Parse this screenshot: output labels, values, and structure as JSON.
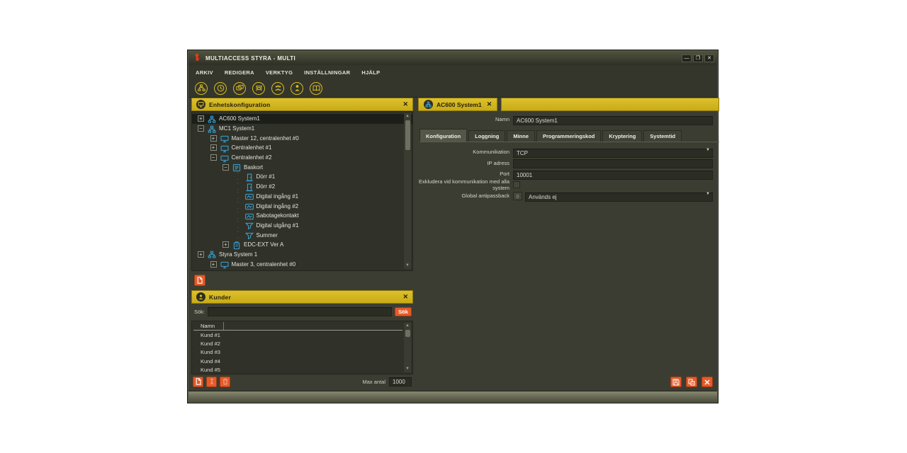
{
  "colors": {
    "accent_yellow": "#d3b622",
    "accent_orange": "#e65a28",
    "icon_cyan": "#39a5d9",
    "icon_yellow": "#d8bc20"
  },
  "glyphs": {
    "close": "✕",
    "minimize": "—",
    "dropdown": "▼",
    "scroll_up": "▲",
    "scroll_down": "▼",
    "expand": "+",
    "collapse": "−",
    "leaf_dash": "- -"
  },
  "window": {
    "title": "MULTIACCESS STYRA - MULTI"
  },
  "menu": {
    "items": [
      "ARKIV",
      "REDIGERA",
      "VERKTYG",
      "INSTÄLLNINGAR",
      "HJÄLP"
    ]
  },
  "toolbar": {
    "icons": [
      "device-tree",
      "time",
      "cards",
      "terminal",
      "group",
      "person",
      "log-book"
    ]
  },
  "device_panel": {
    "title": "Enhetskonfiguration",
    "tree": [
      {
        "label": "AC600 System1",
        "level": 0,
        "state": "collapsed",
        "icon": "system",
        "selected": true
      },
      {
        "label": "MC1 System1",
        "level": 0,
        "state": "expanded",
        "icon": "system",
        "selected": false
      },
      {
        "label": "Master 12, centralenhet #0",
        "level": 1,
        "state": "collapsed",
        "icon": "unit",
        "selected": false
      },
      {
        "label": "Centralenhet #1",
        "level": 1,
        "state": "collapsed",
        "icon": "unit",
        "selected": false
      },
      {
        "label": "Centralenhet #2",
        "level": 1,
        "state": "expanded",
        "icon": "unit",
        "selected": false
      },
      {
        "label": "Baskort",
        "level": 2,
        "state": "expanded",
        "icon": "board",
        "selected": false
      },
      {
        "label": "Dörr #1",
        "level": 3,
        "state": "leaf",
        "icon": "door",
        "selected": false
      },
      {
        "label": "Dörr #2",
        "level": 3,
        "state": "leaf",
        "icon": "door",
        "selected": false
      },
      {
        "label": "Digital ingång #1",
        "level": 3,
        "state": "leaf",
        "icon": "input",
        "selected": false
      },
      {
        "label": "Digital ingång #2",
        "level": 3,
        "state": "leaf",
        "icon": "input",
        "selected": false
      },
      {
        "label": "Sabotagekontakt",
        "level": 3,
        "state": "leaf",
        "icon": "input",
        "selected": false
      },
      {
        "label": "Digital utgång #1",
        "level": 3,
        "state": "leaf",
        "icon": "output",
        "selected": false
      },
      {
        "label": "Summer",
        "level": 3,
        "state": "leaf",
        "icon": "output",
        "selected": false
      },
      {
        "label": "EDC-EXT Ver A",
        "level": 2,
        "state": "collapsed",
        "icon": "module",
        "selected": false
      },
      {
        "label": "Styra System 1",
        "level": 0,
        "state": "collapsed",
        "icon": "system",
        "selected": false
      },
      {
        "label": "Master 3, centralenhet #0",
        "level": 1,
        "state": "collapsed",
        "icon": "unit",
        "selected": false
      }
    ]
  },
  "editor_panel": {
    "tab_label": "AC600 System1",
    "name_field": {
      "label": "Namn",
      "value": "AC600 System1"
    },
    "tabs": [
      {
        "label": "Konfiguration",
        "active": true
      },
      {
        "label": "Loggning",
        "active": false
      },
      {
        "label": "Minne",
        "active": false
      },
      {
        "label": "Programmeringskod",
        "active": false
      },
      {
        "label": "Kryptering",
        "active": false
      },
      {
        "label": "Systemtid",
        "active": false
      }
    ],
    "fields": {
      "kommunikation": {
        "label": "Kommunikation",
        "value": "TCP"
      },
      "ip_adress": {
        "label": "IP adress",
        "value": ""
      },
      "port": {
        "label": "Port",
        "value": "10001"
      },
      "exkludera": {
        "label": "Exkludera vid kommunikation med alla system",
        "checked": false
      },
      "antipassback": {
        "label": "Global antipassback",
        "count": "0",
        "value": "Används ej"
      }
    }
  },
  "customers_panel": {
    "title": "Kunder",
    "search_label": "Sök:",
    "search_value": "",
    "search_button": "Sök",
    "column_header": "Namn",
    "rows": [
      "Kund #1",
      "Kund #2",
      "Kund #3",
      "Kund #4",
      "Kund #5"
    ],
    "max_label": "Max antal",
    "max_value": "1000"
  }
}
